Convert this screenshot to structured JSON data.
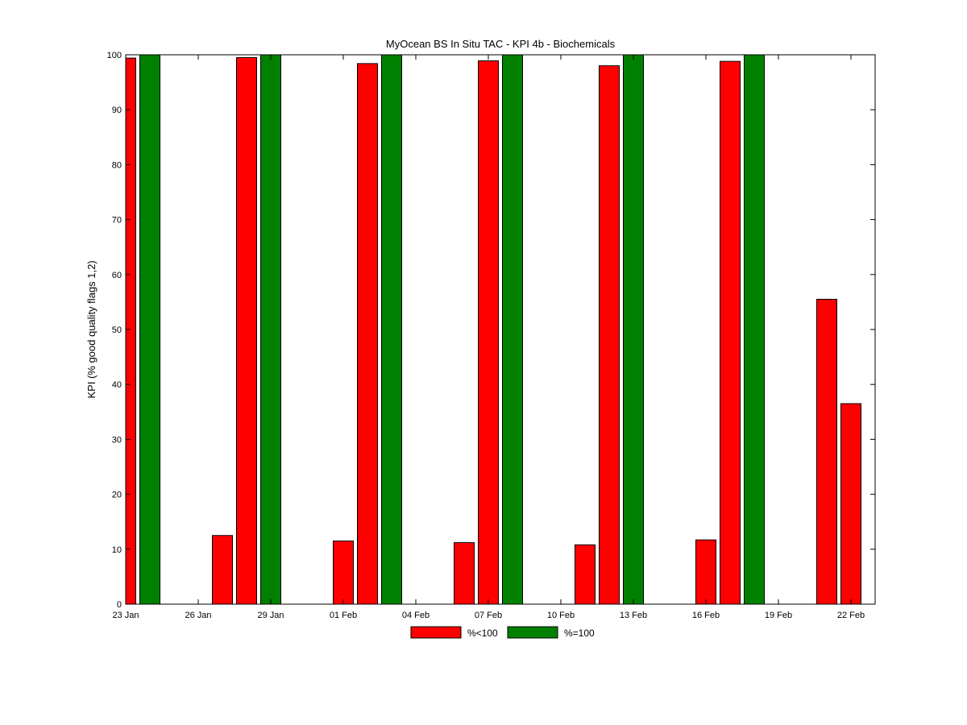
{
  "chart_data": {
    "type": "bar",
    "title": "MyOcean  BS In Situ TAC - KPI 4b - Biochemicals",
    "xlabel": "",
    "ylabel": "KPI (% good quality flags 1,2)",
    "xlim": [
      "23 Jan",
      "23 Feb"
    ],
    "ylim": [
      0,
      100
    ],
    "yticks": [
      0,
      10,
      20,
      30,
      40,
      50,
      60,
      70,
      80,
      90,
      100
    ],
    "xticks": [
      "23 Jan",
      "26 Jan",
      "29 Jan",
      "01 Feb",
      "04 Feb",
      "07 Feb",
      "10 Feb",
      "13 Feb",
      "16 Feb",
      "19 Feb",
      "22 Feb"
    ],
    "grid": false,
    "legend_position": "bottom-center",
    "colors": {
      "%<100": "#ff0000",
      "%=100": "#008000"
    },
    "series": [
      {
        "name": "%<100",
        "points": [
          {
            "x": "23 Jan",
            "y": 99.4
          },
          {
            "x": "27 Jan",
            "y": 12.5
          },
          {
            "x": "28 Jan",
            "y": 99.5
          },
          {
            "x": "01 Feb",
            "y": 11.5
          },
          {
            "x": "02 Feb",
            "y": 98.4
          },
          {
            "x": "06 Feb",
            "y": 11.2
          },
          {
            "x": "07 Feb",
            "y": 98.9
          },
          {
            "x": "11 Feb",
            "y": 10.8
          },
          {
            "x": "12 Feb",
            "y": 98.0
          },
          {
            "x": "16 Feb",
            "y": 11.7
          },
          {
            "x": "17 Feb",
            "y": 98.8
          },
          {
            "x": "21 Feb",
            "y": 55.5
          },
          {
            "x": "22 Feb",
            "y": 36.5
          }
        ]
      },
      {
        "name": "%=100",
        "points": [
          {
            "x": "24 Jan",
            "y": 100
          },
          {
            "x": "29 Jan",
            "y": 100
          },
          {
            "x": "03 Feb",
            "y": 100
          },
          {
            "x": "08 Feb",
            "y": 100
          },
          {
            "x": "13 Feb",
            "y": 100
          },
          {
            "x": "18 Feb",
            "y": 100
          }
        ]
      }
    ]
  }
}
